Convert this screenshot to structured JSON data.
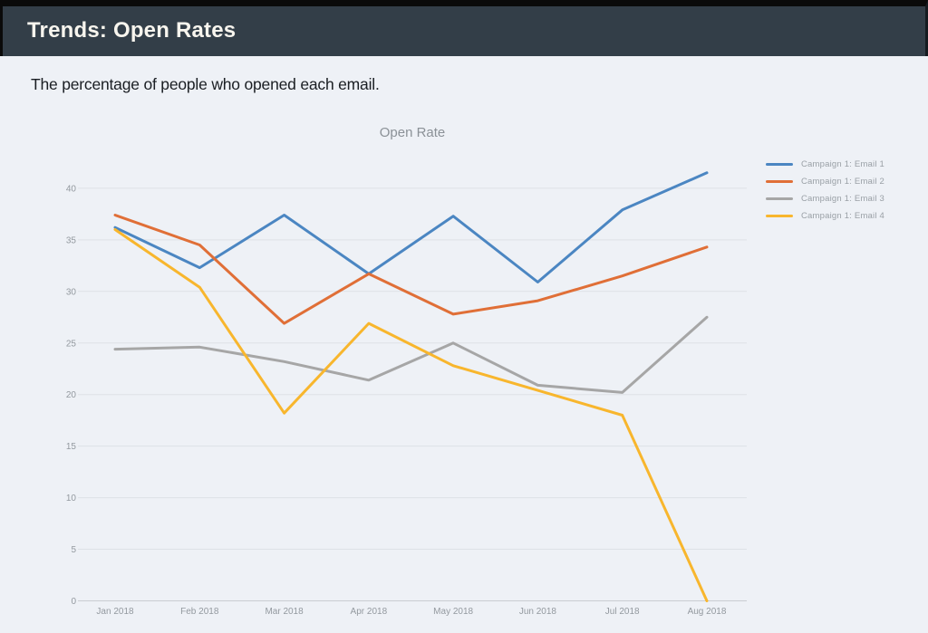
{
  "header": {
    "title": "Trends: Open Rates",
    "subtitle": "The percentage of people who opened each email."
  },
  "chart_data": {
    "type": "line",
    "title": "Open Rate",
    "categories": [
      "Jan 2018",
      "Feb 2018",
      "Mar 2018",
      "Apr 2018",
      "May 2018",
      "Jun 2018",
      "Jul 2018",
      "Aug 2018"
    ],
    "series": [
      {
        "name": "Campaign 1: Email 1",
        "color": "#4b86c2",
        "values": [
          36.2,
          32.3,
          37.4,
          31.7,
          37.3,
          30.9,
          37.9,
          41.5
        ]
      },
      {
        "name": "Campaign 1: Email 2",
        "color": "#e06f37",
        "values": [
          37.4,
          34.5,
          26.9,
          31.7,
          27.8,
          29.1,
          31.5,
          34.3
        ]
      },
      {
        "name": "Campaign 1: Email 3",
        "color": "#a6a6a6",
        "values": [
          24.4,
          24.6,
          23.2,
          21.4,
          25.0,
          20.9,
          20.2,
          27.5
        ]
      },
      {
        "name": "Campaign 1: Email 4",
        "color": "#f8b62d",
        "values": [
          36.0,
          30.4,
          18.2,
          26.9,
          22.8,
          20.4,
          18.0,
          0
        ]
      }
    ],
    "y_ticks": [
      0,
      5,
      10,
      15,
      20,
      25,
      30,
      35,
      40
    ],
    "ylim": [
      0,
      43.5
    ],
    "xlabel": "",
    "ylabel": "",
    "grid": true,
    "legend_position": "right"
  },
  "colors": {
    "page_bg": "#eef1f6",
    "header_bg": "#333e48",
    "header_text": "#f8f5ee",
    "subtitle_text": "#1a1e23",
    "grid_line": "#dde1e6",
    "axis_line": "#c9cdd2",
    "tick_text": "#93999f",
    "chart_title_text": "#8b9197",
    "legend_text": "#9aa0a6"
  }
}
